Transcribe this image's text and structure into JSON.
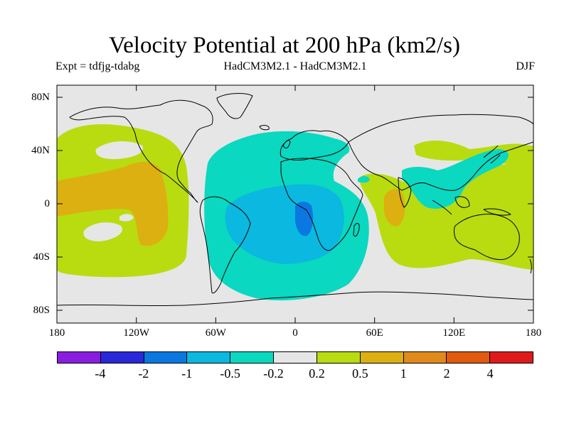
{
  "title": "Velocity Potential at 200 hPa (km2/s)",
  "subtitle": {
    "left": "Expt = tdfjg-tdabg",
    "center": "HadCM3M2.1 - HadCM3M2.1",
    "right": "DJF"
  },
  "axes": {
    "y_ticks": [
      "80N",
      "40N",
      "0",
      "40S",
      "80S"
    ],
    "x_ticks": [
      "180",
      "120W",
      "60W",
      "0",
      "60E",
      "120E",
      "180"
    ]
  },
  "colorbar": {
    "colors": [
      "#8a1ee0",
      "#2a28d8",
      "#0a78e0",
      "#0ab8e0",
      "#0ad8c0",
      "#e6e6e6",
      "#b8dc10",
      "#dcb010",
      "#e08a1c",
      "#e05a10",
      "#e01a1a"
    ],
    "labels": [
      "-4",
      "-2",
      "-1",
      "-0.5",
      "-0.2",
      "0.2",
      "0.5",
      "1",
      "2",
      "4"
    ]
  },
  "map": {
    "background_color": "#e6e6e6",
    "field_colors": {
      "neg_02": "#0ad8c0",
      "neg_05": "#0ab8e0",
      "neg_1": "#0a78e0",
      "pos_02": "#b8dc10",
      "pos_05": "#dcb010"
    }
  }
}
